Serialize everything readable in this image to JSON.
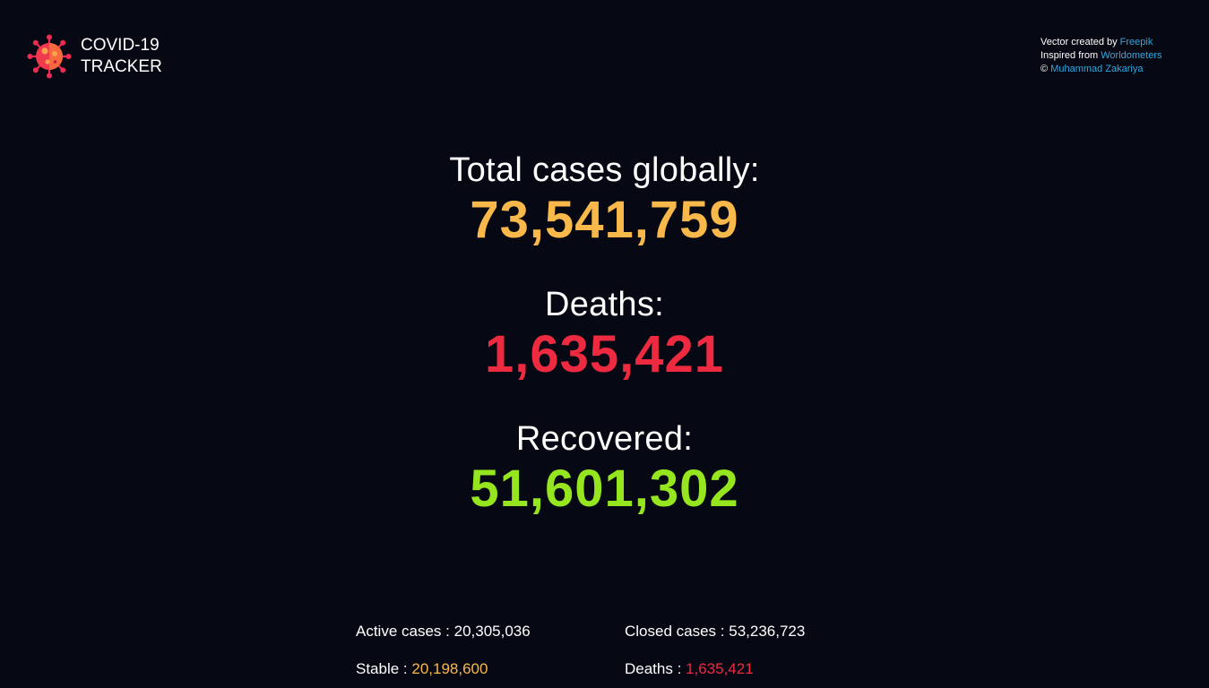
{
  "header": {
    "logo_icon": "virus-icon",
    "title_line1": "COVID-19",
    "title_line2": "TRACKER"
  },
  "credits": {
    "line1_prefix": "Vector created by ",
    "line1_link": "Freepik",
    "line2_prefix": "Inspired from ",
    "line2_link": "Worldometers",
    "line3_prefix": "© ",
    "line3_link": "Muhammad Zakariya"
  },
  "stats": {
    "total_label": "Total cases globally:",
    "total_value": "73,541,759",
    "deaths_label": "Deaths:",
    "deaths_value": "1,635,421",
    "recovered_label": "Recovered:",
    "recovered_value": "51,601,302"
  },
  "details": {
    "active_label": "Active cases : ",
    "active_value": "20,305,036",
    "closed_label": "Closed cases : ",
    "closed_value": "53,236,723",
    "stable_label": "Stable : ",
    "stable_value": "20,198,600",
    "deaths_label": "Deaths : ",
    "deaths_value": "1,635,421"
  },
  "colors": {
    "background": "#060913",
    "total": "#f9b84a",
    "deaths": "#ee2a40",
    "recovered": "#95e61e",
    "link": "#2fa8e0"
  }
}
